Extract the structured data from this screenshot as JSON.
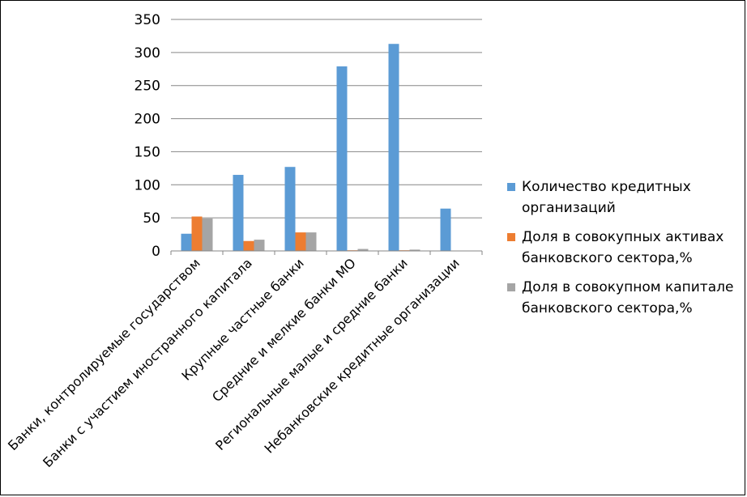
{
  "chart_data": {
    "type": "bar",
    "categories": [
      "Банки, контролируемые государством",
      "Банки с участием иностранного капитала",
      "Крупные частные банки",
      "Средние и мелкие банки МО",
      "Региональные малые и средние банки",
      "Небанковские кредитные организации"
    ],
    "series": [
      {
        "name": "Количество кредитных организаций",
        "color": "#5B9BD5",
        "values": [
          26,
          115,
          127,
          279,
          313,
          64
        ]
      },
      {
        "name": "Доля в совокупных активах банковского сектора,%",
        "color": "#ED7D31",
        "values": [
          52,
          15,
          28,
          1,
          1,
          0
        ]
      },
      {
        "name": "Доля в совокупном капитале банковского сектора,%",
        "color": "#A5A5A5",
        "values": [
          49,
          17,
          28,
          3,
          2,
          0
        ]
      }
    ],
    "y_ticks": [
      "0",
      "50",
      "100",
      "150",
      "200",
      "250",
      "300",
      "350"
    ],
    "ylim": [
      0,
      350
    ],
    "grid": true,
    "legend_position": "right"
  }
}
